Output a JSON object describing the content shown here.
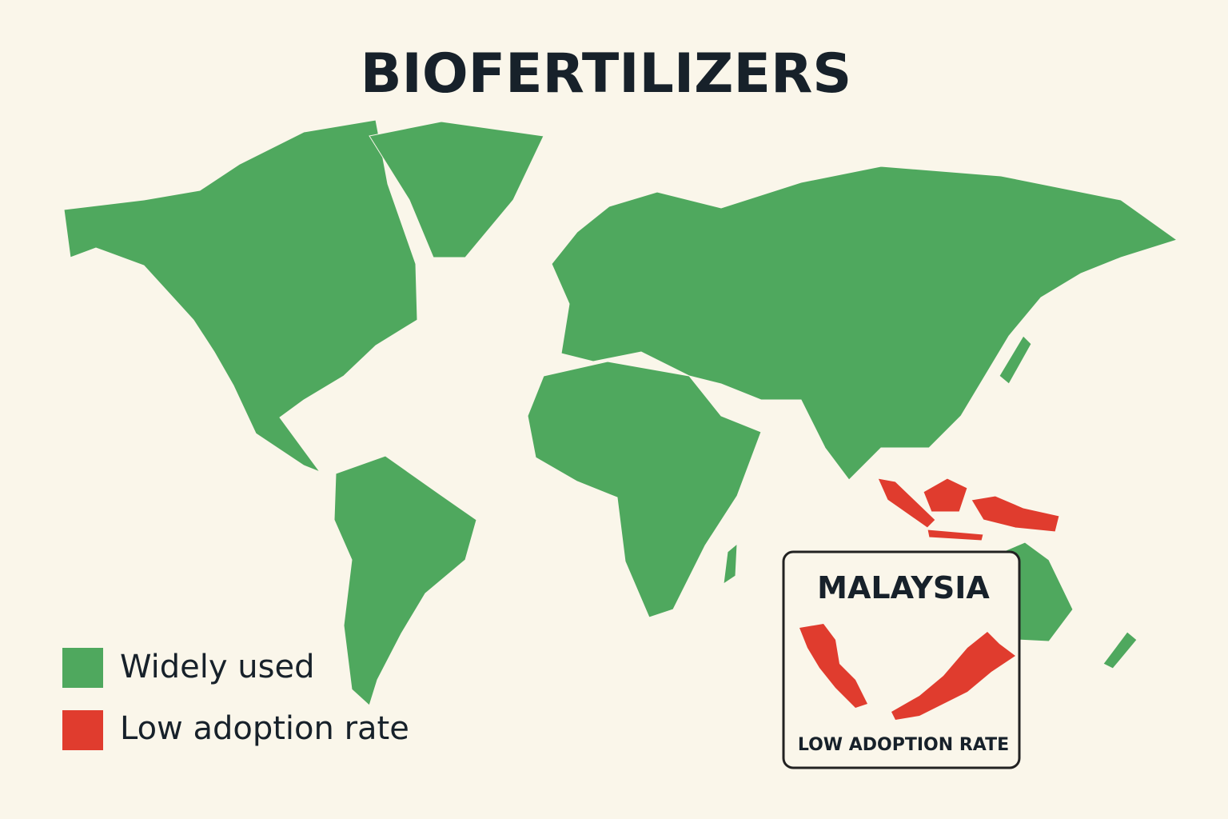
{
  "title": "BIOFERTILIZERS",
  "legend": [
    {
      "label": "Widely used",
      "color": "#4fa85e"
    },
    {
      "label": "Low adoption rate",
      "color": "#e03c2e"
    }
  ],
  "inset": {
    "title": "MALAYSIA",
    "caption": "LOW ADOPTION RATE"
  }
}
